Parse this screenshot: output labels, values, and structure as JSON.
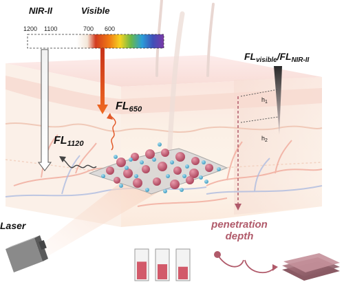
{
  "labels": {
    "nir": "NIR-II",
    "visible": "Visible",
    "ticks": [
      "1200",
      "1100",
      "700",
      "600"
    ],
    "fl650_main": "FL",
    "fl650_sub": "650",
    "fl1120_main": "FL",
    "fl1120_sub": "1120",
    "ratio_main1": "FL",
    "ratio_sub1": "visible",
    "ratio_slash": "/FL",
    "ratio_sub2": "NIR-II",
    "h1_main": "h",
    "h1_sub": "1",
    "h2_main": "h",
    "h2_sub": "2",
    "laser": "Laser",
    "penetration_line1": "penetration",
    "penetration_line2": "depth"
  },
  "colors": {
    "skin_top": "#fbe6e1",
    "skin_mid": "#f6ddd0",
    "nanoparticle_red": "#c25c72",
    "nanoparticle_blue": "#5fb6d6",
    "orange_beam": "#e8511d",
    "penetration_text": "#b05a6a"
  },
  "icons": {
    "laser_device": "laser-device-icon",
    "cuvettes": "cuvette-icon",
    "film": "film-stack-icon"
  }
}
